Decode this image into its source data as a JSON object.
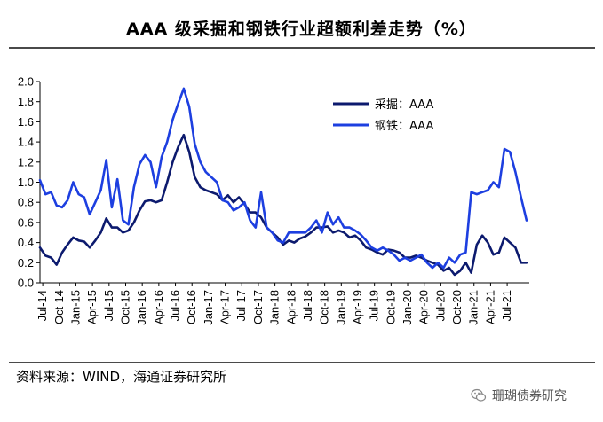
{
  "title": "AAA 级采掘和钢铁行业超额利差走势（%）",
  "source": "资料来源：WIND，海通证券研究所",
  "watermark": "珊瑚债券研究",
  "watermark_icon": "wechat-icon",
  "chart_data": {
    "type": "line",
    "title": "AAA 级采掘和钢铁行业超额利差走势（%）",
    "xlabel": "",
    "ylabel": "",
    "ylim": [
      0,
      2.0
    ],
    "yticks": [
      "0.0",
      "0.2",
      "0.4",
      "0.6",
      "0.8",
      "1.0",
      "1.2",
      "1.4",
      "1.6",
      "1.8",
      "2.0"
    ],
    "x_ticks": [
      "Jul-14",
      "Oct-14",
      "Jan-15",
      "Apr-15",
      "Jul-15",
      "Oct-15",
      "Jan-16",
      "Apr-16",
      "Jul-16",
      "Oct-16",
      "Jan-17",
      "Apr-17",
      "Jul-17",
      "Oct-17",
      "Jan-18",
      "Apr-18",
      "Jul-18",
      "Oct-18",
      "Jan-19",
      "Apr-19",
      "Jul-19",
      "Oct-19",
      "Jan-20",
      "Apr-20",
      "Jul-20",
      "Oct-20",
      "Jan-21",
      "Apr-21",
      "Jul-21"
    ],
    "x_range": [
      0,
      88.5
    ],
    "grid": false,
    "legend_position": "top-right",
    "series": [
      {
        "name": "采掘：AAA",
        "color": "#0c1a6e",
        "points": [
          [
            0,
            0.35
          ],
          [
            1,
            0.27
          ],
          [
            2,
            0.25
          ],
          [
            3,
            0.18
          ],
          [
            4,
            0.3
          ],
          [
            5,
            0.38
          ],
          [
            6,
            0.45
          ],
          [
            7,
            0.42
          ],
          [
            8,
            0.41
          ],
          [
            9,
            0.35
          ],
          [
            10,
            0.42
          ],
          [
            11,
            0.5
          ],
          [
            12,
            0.64
          ],
          [
            13,
            0.55
          ],
          [
            14,
            0.55
          ],
          [
            15,
            0.5
          ],
          [
            16,
            0.52
          ],
          [
            17,
            0.6
          ],
          [
            18,
            0.72
          ],
          [
            19,
            0.81
          ],
          [
            20,
            0.82
          ],
          [
            21,
            0.8
          ],
          [
            22,
            0.82
          ],
          [
            23,
            1.0
          ],
          [
            24,
            1.2
          ],
          [
            25,
            1.35
          ],
          [
            26,
            1.47
          ],
          [
            27,
            1.3
          ],
          [
            28,
            1.05
          ],
          [
            29,
            0.95
          ],
          [
            30,
            0.92
          ],
          [
            31,
            0.9
          ],
          [
            32,
            0.88
          ],
          [
            33,
            0.82
          ],
          [
            34,
            0.87
          ],
          [
            35,
            0.8
          ],
          [
            36,
            0.85
          ],
          [
            37,
            0.78
          ],
          [
            38,
            0.7
          ],
          [
            39,
            0.7
          ],
          [
            40,
            0.65
          ],
          [
            41,
            0.55
          ],
          [
            42,
            0.5
          ],
          [
            43,
            0.45
          ],
          [
            44,
            0.38
          ],
          [
            45,
            0.42
          ],
          [
            46,
            0.4
          ],
          [
            47,
            0.44
          ],
          [
            48,
            0.46
          ],
          [
            49,
            0.5
          ],
          [
            50,
            0.55
          ],
          [
            51,
            0.55
          ],
          [
            52,
            0.56
          ],
          [
            53,
            0.5
          ],
          [
            54,
            0.52
          ],
          [
            55,
            0.5
          ],
          [
            56,
            0.45
          ],
          [
            57,
            0.47
          ],
          [
            58,
            0.42
          ],
          [
            59,
            0.35
          ],
          [
            60,
            0.33
          ],
          [
            61,
            0.3
          ],
          [
            62,
            0.28
          ],
          [
            63,
            0.33
          ],
          [
            64,
            0.32
          ],
          [
            65,
            0.3
          ],
          [
            66,
            0.25
          ],
          [
            67,
            0.25
          ],
          [
            68,
            0.27
          ],
          [
            69,
            0.25
          ],
          [
            70,
            0.22
          ],
          [
            71,
            0.2
          ],
          [
            72,
            0.18
          ],
          [
            73,
            0.12
          ],
          [
            74,
            0.15
          ],
          [
            75,
            0.08
          ],
          [
            76,
            0.12
          ],
          [
            77,
            0.2
          ],
          [
            78,
            0.1
          ],
          [
            79,
            0.38
          ],
          [
            80,
            0.47
          ],
          [
            81,
            0.4
          ],
          [
            82,
            0.28
          ],
          [
            83,
            0.3
          ],
          [
            84,
            0.45
          ],
          [
            85,
            0.4
          ],
          [
            86,
            0.35
          ],
          [
            87,
            0.2
          ],
          [
            88,
            0.2
          ]
        ]
      },
      {
        "name": "钢铁：AAA",
        "color": "#1d3fe0",
        "points": [
          [
            0,
            1.02
          ],
          [
            1,
            0.88
          ],
          [
            2,
            0.9
          ],
          [
            3,
            0.77
          ],
          [
            4,
            0.75
          ],
          [
            5,
            0.82
          ],
          [
            6,
            1.0
          ],
          [
            7,
            0.88
          ],
          [
            8,
            0.85
          ],
          [
            9,
            0.68
          ],
          [
            10,
            0.8
          ],
          [
            11,
            0.92
          ],
          [
            12,
            1.22
          ],
          [
            13,
            0.75
          ],
          [
            14,
            1.03
          ],
          [
            15,
            0.62
          ],
          [
            16,
            0.58
          ],
          [
            17,
            0.95
          ],
          [
            18,
            1.18
          ],
          [
            19,
            1.27
          ],
          [
            20,
            1.2
          ],
          [
            21,
            0.95
          ],
          [
            22,
            1.25
          ],
          [
            23,
            1.4
          ],
          [
            24,
            1.62
          ],
          [
            25,
            1.78
          ],
          [
            26,
            1.93
          ],
          [
            27,
            1.75
          ],
          [
            28,
            1.38
          ],
          [
            29,
            1.2
          ],
          [
            30,
            1.1
          ],
          [
            31,
            1.05
          ],
          [
            32,
            1.0
          ],
          [
            33,
            0.82
          ],
          [
            34,
            0.8
          ],
          [
            35,
            0.72
          ],
          [
            36,
            0.75
          ],
          [
            37,
            0.8
          ],
          [
            38,
            0.62
          ],
          [
            39,
            0.55
          ],
          [
            40,
            0.9
          ],
          [
            41,
            0.55
          ],
          [
            42,
            0.5
          ],
          [
            43,
            0.42
          ],
          [
            44,
            0.4
          ],
          [
            45,
            0.5
          ],
          [
            46,
            0.5
          ],
          [
            47,
            0.5
          ],
          [
            48,
            0.5
          ],
          [
            49,
            0.55
          ],
          [
            50,
            0.62
          ],
          [
            51,
            0.5
          ],
          [
            52,
            0.7
          ],
          [
            53,
            0.58
          ],
          [
            54,
            0.65
          ],
          [
            55,
            0.55
          ],
          [
            56,
            0.55
          ],
          [
            57,
            0.52
          ],
          [
            58,
            0.48
          ],
          [
            59,
            0.42
          ],
          [
            60,
            0.35
          ],
          [
            61,
            0.32
          ],
          [
            62,
            0.35
          ],
          [
            63,
            0.32
          ],
          [
            64,
            0.28
          ],
          [
            65,
            0.22
          ],
          [
            66,
            0.25
          ],
          [
            67,
            0.22
          ],
          [
            68,
            0.25
          ],
          [
            69,
            0.28
          ],
          [
            70,
            0.2
          ],
          [
            71,
            0.15
          ],
          [
            72,
            0.2
          ],
          [
            73,
            0.15
          ],
          [
            74,
            0.25
          ],
          [
            75,
            0.2
          ],
          [
            76,
            0.28
          ],
          [
            77,
            0.3
          ],
          [
            78,
            0.9
          ],
          [
            79,
            0.88
          ],
          [
            80,
            0.9
          ],
          [
            81,
            0.92
          ],
          [
            82,
            1.0
          ],
          [
            83,
            0.95
          ],
          [
            84,
            1.33
          ],
          [
            85,
            1.3
          ],
          [
            86,
            1.1
          ],
          [
            87,
            0.85
          ],
          [
            88,
            0.62
          ]
        ]
      }
    ]
  }
}
